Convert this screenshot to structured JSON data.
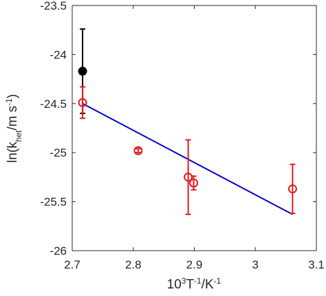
{
  "chart_data": {
    "type": "scatter",
    "xlabel": [
      {
        "text": "10"
      },
      {
        "text": "3",
        "shift": "super"
      },
      {
        "text": "T"
      },
      {
        "text": "-1",
        "shift": "super"
      },
      {
        "text": "/K"
      },
      {
        "text": "-1",
        "shift": "super"
      }
    ],
    "ylabel": [
      {
        "text": "ln(k"
      },
      {
        "text": "het",
        "shift": "sub"
      },
      {
        "text": "/m s"
      },
      {
        "text": "-1",
        "shift": "super"
      },
      {
        "text": ")"
      }
    ],
    "xlim": [
      2.7,
      3.1
    ],
    "xticks": [
      2.7,
      2.8,
      2.9,
      3,
      3.1
    ],
    "ylim": [
      -26,
      -23.5
    ],
    "yticks": [
      -26,
      -25.5,
      -25,
      -24.5,
      -24,
      -23.5
    ],
    "box": true,
    "series": [
      {
        "color": "#000000",
        "filled": true,
        "x": [
          2.717
        ],
        "values": [
          -24.17
        ],
        "errors": [
          0.43
        ]
      },
      {
        "color": "#e31a1c",
        "filled": false,
        "x": [
          2.717,
          2.808,
          2.89,
          2.899,
          3.061
        ],
        "values": [
          -24.49,
          -24.98,
          -25.25,
          -25.31,
          -25.37
        ],
        "errors": [
          0.16,
          0.02,
          0.38,
          0.07,
          0.25
        ]
      }
    ],
    "fit": {
      "color": "#0000cc",
      "x": [
        2.717,
        3.061
      ],
      "values": [
        -24.5,
        -25.63
      ]
    }
  }
}
